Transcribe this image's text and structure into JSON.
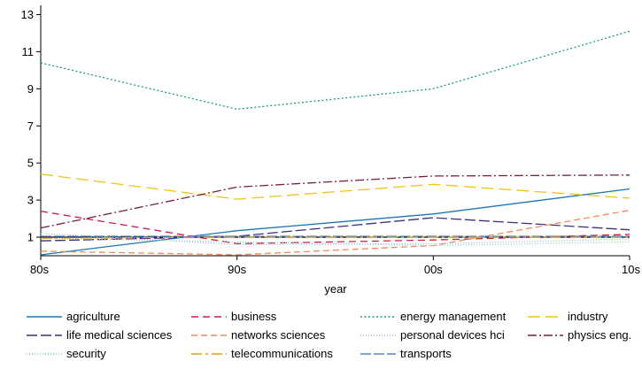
{
  "chart_data": {
    "type": "line",
    "title": "",
    "xlabel": "year",
    "ylabel": "",
    "categories": [
      "80s",
      "90s",
      "00s",
      "10s"
    ],
    "ylim": [
      0,
      13.5
    ],
    "yticks": [
      1,
      3,
      5,
      7,
      9,
      11,
      13
    ],
    "reference_line": 1,
    "grid": false,
    "legend": "bottom",
    "series": [
      {
        "name": "agriculture",
        "values": [
          0.05,
          1.35,
          2.25,
          3.6
        ],
        "color": "#1a76b8",
        "dash": ""
      },
      {
        "name": "business",
        "values": [
          2.4,
          0.65,
          0.85,
          1.15
        ],
        "color": "#c81e45",
        "dash": "8,5"
      },
      {
        "name": "energy management",
        "values": [
          10.4,
          7.9,
          9.0,
          12.1
        ],
        "color": "#18a06a",
        "dash": "2,2.5"
      },
      {
        "name": "industry",
        "values": [
          4.4,
          3.05,
          3.85,
          3.1
        ],
        "color": "#f0c419",
        "dash": "14,6"
      },
      {
        "name": "life medical sciences",
        "values": [
          0.8,
          1.05,
          2.05,
          1.4
        ],
        "color": "#3e2f7f",
        "dash": "12,4"
      },
      {
        "name": "networks sciences",
        "values": [
          0.25,
          0.05,
          0.55,
          2.45
        ],
        "color": "#f08a58",
        "dash": "7,4"
      },
      {
        "name": "personal devices hci",
        "values": [
          1.2,
          0.6,
          0.65,
          0.9
        ],
        "color": "#a3b6d6",
        "dash": "1,2"
      },
      {
        "name": "physics eng.",
        "values": [
          1.5,
          3.7,
          4.3,
          4.35
        ],
        "color": "#7b1f3a",
        "dash": "10,3,2,3"
      },
      {
        "name": "security",
        "values": [
          0.95,
          0.75,
          0.55,
          0.75
        ],
        "color": "#88d1c4",
        "dash": "1,2"
      },
      {
        "name": "telecommunications",
        "values": [
          0.95,
          1.0,
          1.0,
          1.0
        ],
        "color": "#e8a11b",
        "dash": "12,4,3,4"
      },
      {
        "name": "transports",
        "values": [
          1.05,
          1.05,
          1.05,
          1.05
        ],
        "color": "#5a86c4",
        "dash": "12,3"
      }
    ]
  }
}
